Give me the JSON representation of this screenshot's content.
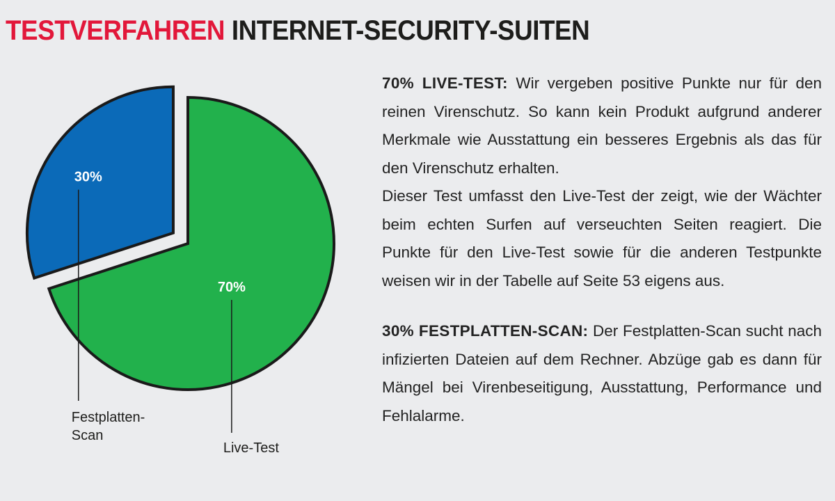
{
  "title": {
    "accent": "TESTVERFAHREN",
    "main": "INTERNET-SECURITY-SUITEN"
  },
  "chart_data": {
    "type": "pie",
    "slices": [
      {
        "name": "Live-Test",
        "value": 70,
        "label": "70%",
        "legend_label": "Live-Test",
        "color": "#22b14c"
      },
      {
        "name": "Festplatten-Scan",
        "value": 30,
        "label": "30%",
        "legend_label_lines": [
          "Festplatten-",
          "Scan"
        ],
        "color": "#0b6ab8"
      }
    ],
    "exploded_slice": "Festplatten-Scan",
    "title": "",
    "legend": "callout-lines-below"
  },
  "text": {
    "para1_lead": "70% LIVE-TEST:",
    "para1_body": "Wir vergeben positive Punkte nur für den reinen Virenschutz. So kann kein Produkt auf­grund anderer Merkmale wie Ausstattung ein besse­res Ergebnis als das für den Virenschutz erhalten.",
    "para2": "Dieser Test umfasst den Live-Test der zeigt, wie der Wächter beim echten Surfen auf verseuchten Seiten reagiert. Die Punkte für den Live-Test sowie für die an­deren Testpunkte weisen wir in der Tabelle auf Seite 53 eigens aus.",
    "para3_lead": "30% FESTPLATTEN-SCAN:",
    "para3_body": "Der Festplatten-Scan sucht nach infizierten Dateien auf dem Rechner. Ab­züge gab es dann für Mängel bei Virenbeseitigung, Ausstattung, Performance und Fehlalarme."
  },
  "colors": {
    "background": "#ebecee",
    "accent_red": "#e2173a",
    "green_slice": "#22b14c",
    "blue_slice": "#0b6ab8",
    "outline": "#1a1a1a"
  }
}
